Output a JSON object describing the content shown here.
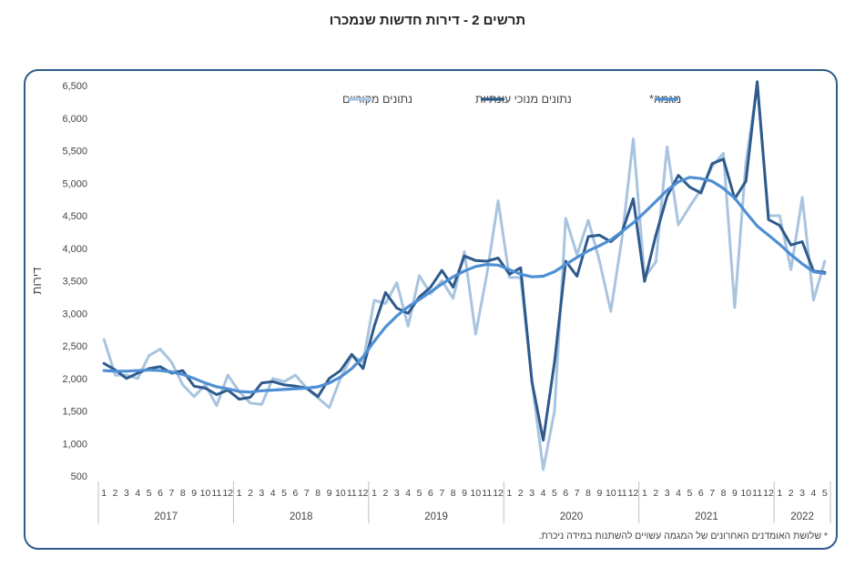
{
  "title": "תרשים 2 - דירות חדשות שנמכרו",
  "footnote": "* שלושת האומדנים האחרונים של המגמה עשויים להשתנות במידה ניכרת.",
  "colors": {
    "original": "#a9c4e0",
    "adjusted": "#2e5a8c",
    "trend": "#4f8fd3",
    "frame": "#2f5b8a"
  },
  "chart_data": {
    "type": "line",
    "ylabel": "דירות",
    "ylim": [
      500,
      6500
    ],
    "yticks": [
      500,
      1000,
      1500,
      2000,
      2500,
      3000,
      3500,
      4000,
      4500,
      5000,
      5500,
      6000,
      6500
    ],
    "ytick_labels": [
      "500",
      "1,000",
      "1,500",
      "2,000",
      "2,500",
      "3,000",
      "3,500",
      "4,000",
      "4,500",
      "5,000",
      "5,500",
      "6,000",
      "6,500"
    ],
    "years": [
      {
        "label": "2017",
        "months": 12
      },
      {
        "label": "2018",
        "months": 12
      },
      {
        "label": "2019",
        "months": 12
      },
      {
        "label": "2020",
        "months": 12
      },
      {
        "label": "2021",
        "months": 12
      },
      {
        "label": "2022",
        "months": 5
      }
    ],
    "legend_position": "top",
    "series": [
      {
        "name": "נתונים מקוריים",
        "key": "original",
        "values": [
          2600,
          2050,
          2050,
          2000,
          2350,
          2450,
          2250,
          1900,
          1720,
          1900,
          1580,
          2050,
          1800,
          1620,
          1600,
          2000,
          1950,
          2050,
          1850,
          1700,
          1550,
          2000,
          2350,
          2250,
          3200,
          3150,
          3470,
          2800,
          3580,
          3300,
          3500,
          3230,
          3950,
          2680,
          3600,
          4730,
          3550,
          3550,
          1950,
          600,
          1500,
          4460,
          3900,
          4430,
          3800,
          3030,
          4160,
          5680,
          3550,
          3790,
          5560,
          4360,
          4640,
          4900,
          5260,
          5460,
          3090,
          5320,
          6500,
          4500,
          4500,
          3670,
          4780,
          3200,
          3800
        ]
      },
      {
        "name": "נתונים מנוכי עונתיות",
        "key": "adjusted",
        "values": [
          2230,
          2130,
          2000,
          2080,
          2150,
          2180,
          2080,
          2120,
          1880,
          1850,
          1750,
          1820,
          1680,
          1710,
          1930,
          1950,
          1900,
          1880,
          1850,
          1720,
          2000,
          2120,
          2370,
          2150,
          2800,
          3320,
          3080,
          3000,
          3250,
          3400,
          3660,
          3400,
          3880,
          3810,
          3800,
          3850,
          3600,
          3700,
          1950,
          1050,
          2250,
          3800,
          3570,
          4180,
          4200,
          4100,
          4250,
          4760,
          3490,
          4200,
          4800,
          5120,
          4940,
          4850,
          5300,
          5370,
          4760,
          5030,
          6560,
          4440,
          4350,
          4050,
          4100,
          3650,
          3630
        ]
      },
      {
        "name": "מגמה*",
        "key": "trend",
        "values": [
          2120,
          2110,
          2110,
          2120,
          2130,
          2120,
          2100,
          2060,
          2000,
          1930,
          1870,
          1840,
          1800,
          1790,
          1810,
          1820,
          1830,
          1840,
          1850,
          1870,
          1930,
          2020,
          2150,
          2330,
          2570,
          2790,
          2960,
          3100,
          3210,
          3330,
          3450,
          3560,
          3650,
          3720,
          3750,
          3740,
          3670,
          3600,
          3560,
          3570,
          3640,
          3750,
          3860,
          3960,
          4040,
          4130,
          4260,
          4390,
          4550,
          4720,
          4890,
          5020,
          5090,
          5070,
          5030,
          4920,
          4770,
          4550,
          4340,
          4200,
          4060,
          3900,
          3760,
          3640,
          3610
        ]
      }
    ]
  }
}
